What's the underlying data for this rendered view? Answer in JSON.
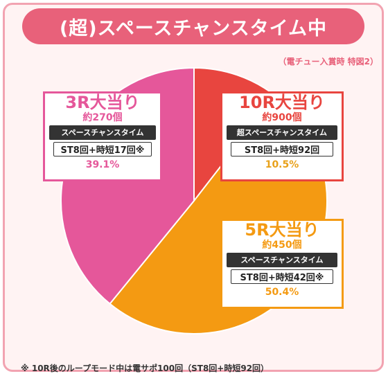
{
  "title": "(超)スペースチャンスタイム中",
  "note_top": "（電チュー入賞時 特図2）",
  "footnote": "※ 10R後のループモード中は電サポ100回（ST8回+時短92回）",
  "colors": {
    "frame_bg": "#fff3f3",
    "frame_border": "#f2a3b1",
    "title_bg": "#e8617a",
    "slice_10r": "#e8453f",
    "slice_5r": "#f49a12",
    "slice_3r": "#e5579a"
  },
  "callouts": {
    "r3": {
      "head": "3R大当り",
      "count": "約270個",
      "mode": "スペースチャンスタイム",
      "st": "ST8回+時短17回※",
      "pct": "39.1%"
    },
    "r10": {
      "head": "10R大当り",
      "count": "約900個",
      "mode": "超スペースチャンスタイム",
      "st": "ST8回+時短92回",
      "pct": "10.5%"
    },
    "r5": {
      "head": "5R大当り",
      "count": "約450個",
      "mode": "スペースチャンスタイム",
      "st": "ST8回+時短42回※",
      "pct": "50.4%"
    }
  },
  "chart_data": {
    "type": "pie",
    "title": "(超)スペースチャンスタイム中",
    "categories": [
      "10R大当り",
      "5R大当り",
      "3R大当り"
    ],
    "values": [
      10.5,
      50.4,
      39.1
    ],
    "colors": [
      "#e8453f",
      "#f49a12",
      "#e5579a"
    ],
    "start": "top",
    "direction": "clockwise"
  }
}
